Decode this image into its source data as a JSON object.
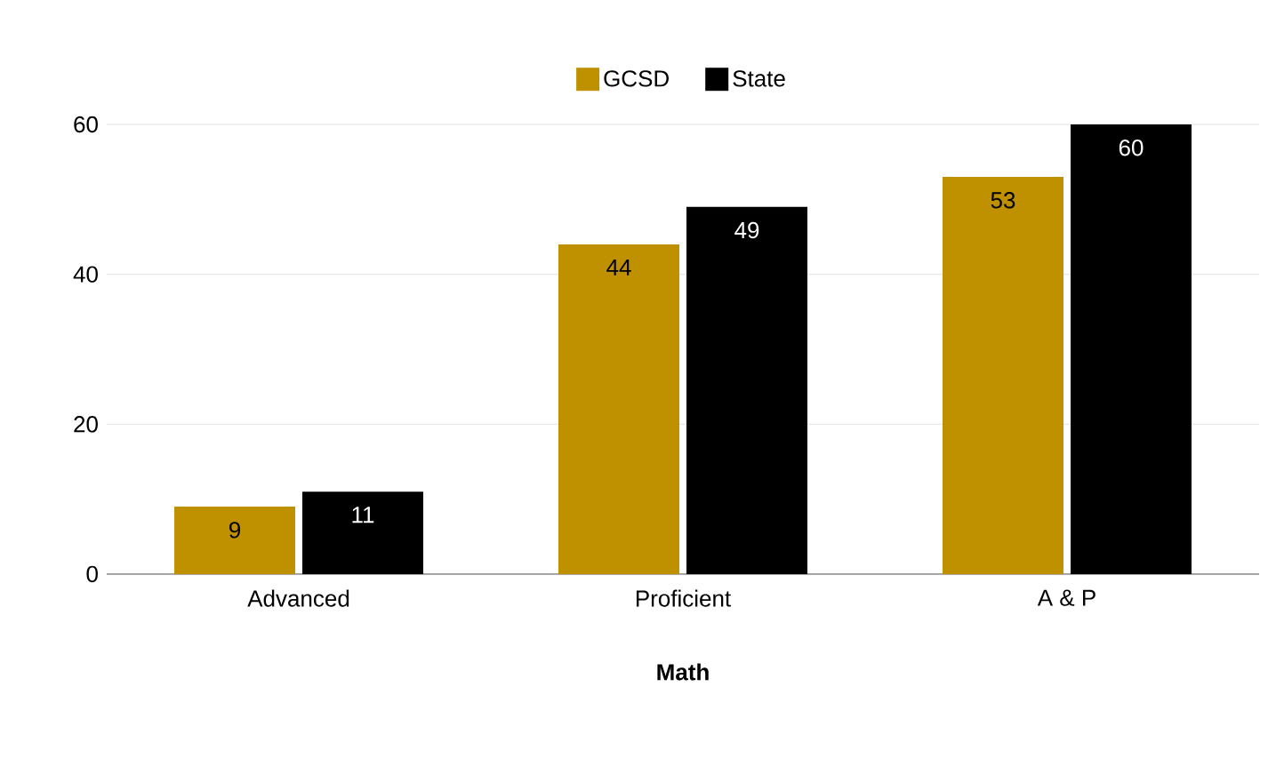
{
  "chart_data": {
    "type": "bar",
    "xlabel": "Math",
    "categories": [
      "Advanced",
      "Proficient",
      "A & P"
    ],
    "series": [
      {
        "name": "GCSD",
        "color": "#bf9000",
        "values": [
          9,
          44,
          53
        ]
      },
      {
        "name": "State",
        "color": "#000000",
        "values": [
          11,
          49,
          60
        ]
      }
    ],
    "ylim": [
      0,
      60
    ],
    "yticks": [
      0,
      20,
      40,
      60
    ],
    "grid": "y",
    "legend": "top",
    "data_labels": true
  }
}
